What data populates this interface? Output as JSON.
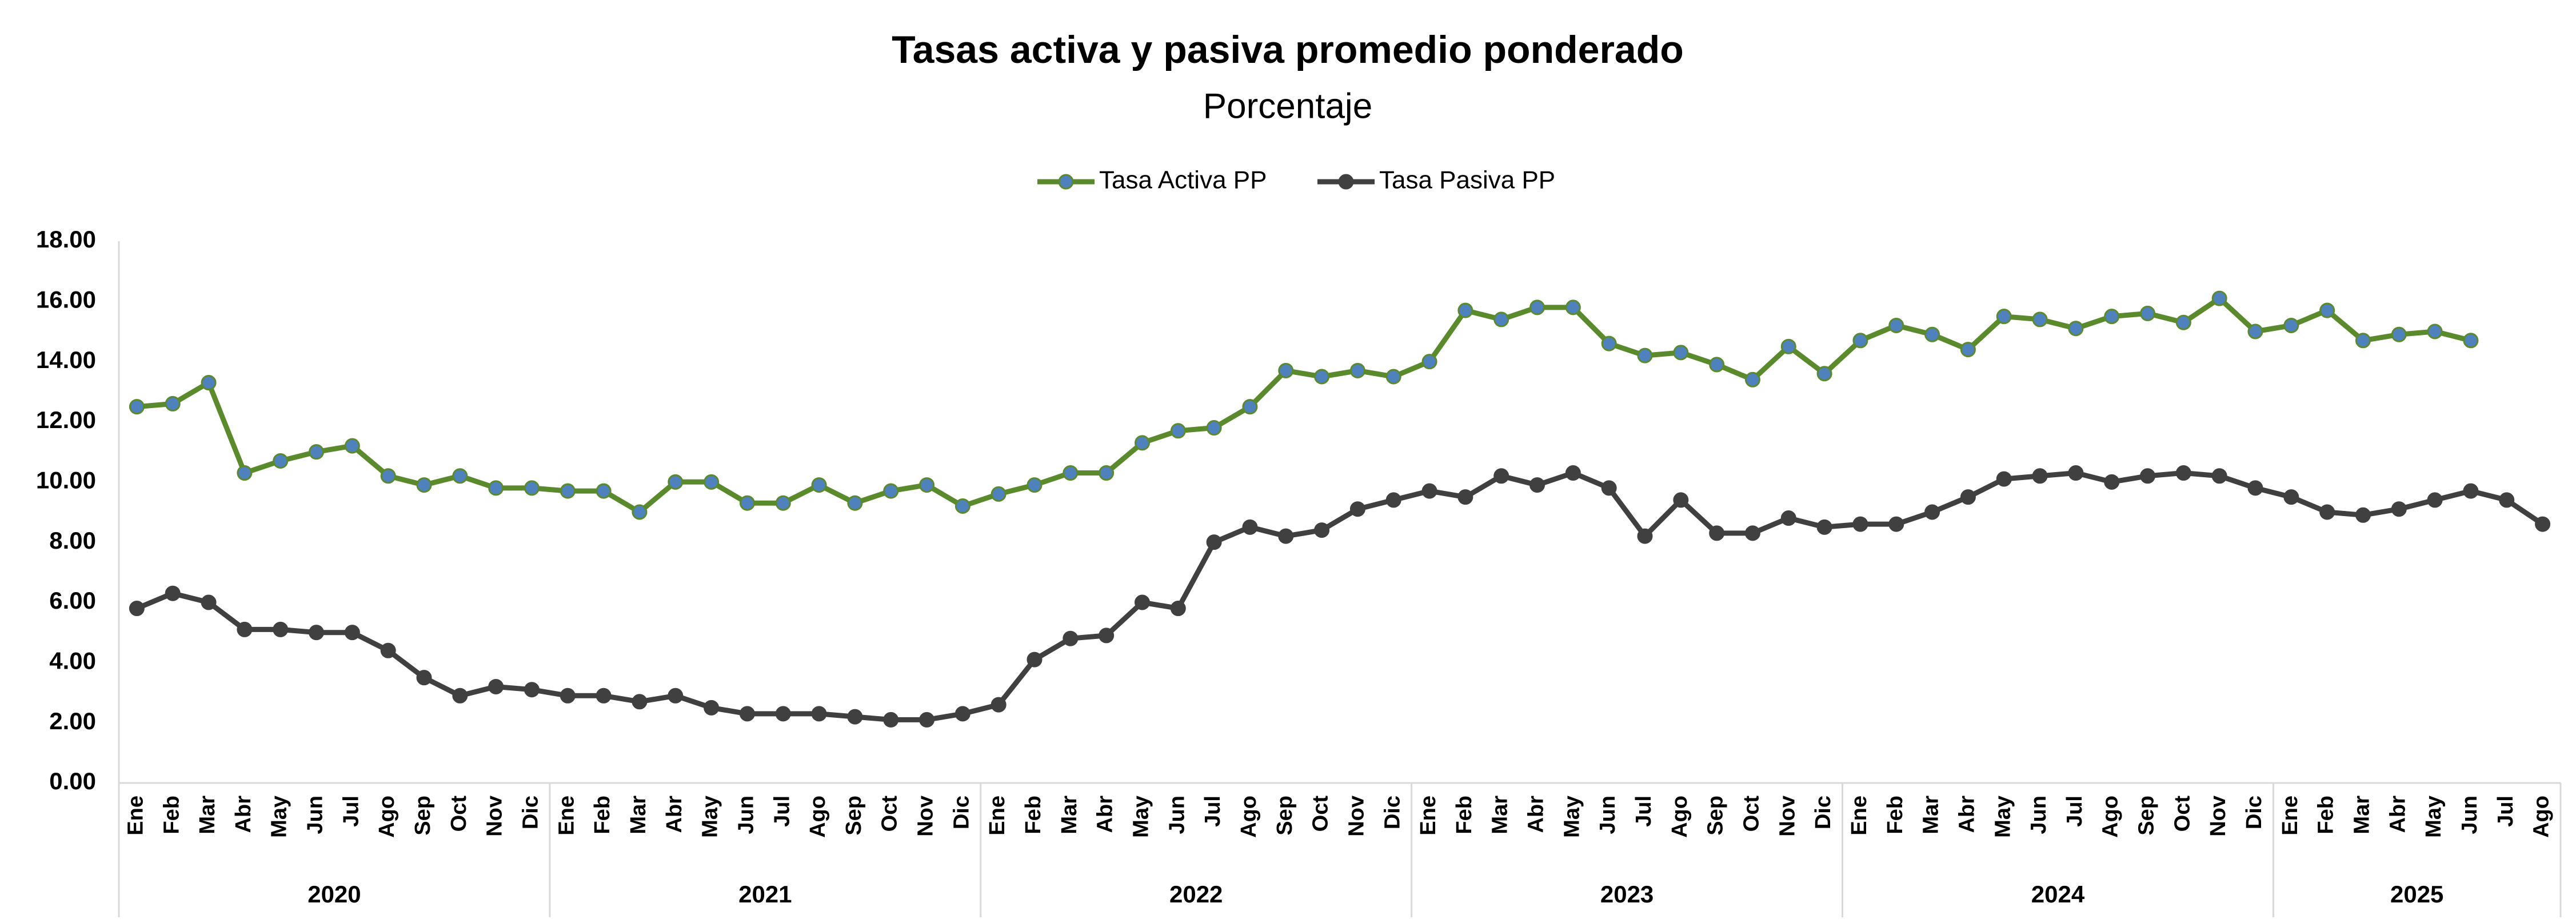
{
  "chart_data": {
    "type": "line",
    "title": "Tasas activa y pasiva promedio ponderado",
    "subtitle": "Porcentaje",
    "categories": [
      "Ene",
      "Feb",
      "Mar",
      "Abr",
      "May",
      "Jun",
      "Jul",
      "Ago",
      "Sep",
      "Oct",
      "Nov",
      "Dic",
      "Ene",
      "Feb",
      "Mar",
      "Abr",
      "May",
      "Jun",
      "Jul",
      "Ago",
      "Sep",
      "Oct",
      "Nov",
      "Dic",
      "Ene",
      "Feb",
      "Mar",
      "Abr",
      "May",
      "Jun",
      "Jul",
      "Ago",
      "Sep",
      "Oct",
      "Nov",
      "Dic",
      "Ene",
      "Feb",
      "Mar",
      "Abr",
      "May",
      "Jun",
      "Jul",
      "Ago",
      "Sep",
      "Oct",
      "Nov",
      "Dic",
      "Ene",
      "Feb",
      "Mar",
      "Abr",
      "May",
      "Jun",
      "Jul",
      "Ago",
      "Sep",
      "Oct",
      "Nov",
      "Dic",
      "Ene",
      "Feb",
      "Mar",
      "Abr",
      "May",
      "Jun",
      "Jul",
      "Ago"
    ],
    "year_groups": [
      "2020",
      "2021",
      "2022",
      "2023",
      "2024",
      "2025"
    ],
    "series": [
      {
        "name": "Tasa Activa PP",
        "color": "#5b8a2d",
        "marker_color": "#4f81bd",
        "values": [
          12.5,
          12.6,
          13.3,
          10.3,
          10.7,
          11.0,
          11.2,
          10.2,
          9.9,
          10.2,
          9.8,
          9.8,
          9.7,
          9.7,
          9.0,
          10.0,
          10.0,
          9.3,
          9.3,
          9.9,
          9.3,
          9.7,
          9.9,
          9.2,
          9.6,
          9.9,
          10.3,
          10.3,
          11.3,
          11.7,
          11.8,
          12.5,
          13.7,
          13.5,
          13.7,
          13.5,
          14.0,
          15.7,
          15.4,
          15.8,
          15.8,
          14.6,
          14.2,
          14.3,
          13.9,
          13.4,
          14.5,
          13.6,
          14.7,
          15.2,
          14.9,
          14.4,
          15.5,
          15.4,
          15.1,
          15.5,
          15.6,
          15.3,
          16.1,
          15.0,
          15.2,
          15.7,
          14.7,
          14.9,
          15.0,
          14.7,
          null,
          null
        ]
      },
      {
        "name": "Tasa Pasiva PP",
        "color": "#404040",
        "marker_color": "#404040",
        "values": [
          5.8,
          6.3,
          6.0,
          5.1,
          5.1,
          5.0,
          5.0,
          4.4,
          3.5,
          2.9,
          3.2,
          3.1,
          2.9,
          2.9,
          2.7,
          2.9,
          2.5,
          2.3,
          2.3,
          2.3,
          2.2,
          2.1,
          2.1,
          2.3,
          2.6,
          4.1,
          4.8,
          4.9,
          6.0,
          5.8,
          8.0,
          8.5,
          8.2,
          8.4,
          9.1,
          9.4,
          9.7,
          9.5,
          10.2,
          9.9,
          10.3,
          9.8,
          8.2,
          9.4,
          8.3,
          8.3,
          8.8,
          8.5,
          8.6,
          8.6,
          9.0,
          9.5,
          10.1,
          10.2,
          10.3,
          10.0,
          10.2,
          10.3,
          10.2,
          9.8,
          9.5,
          9.0,
          8.9,
          9.1,
          9.4,
          9.7,
          9.4,
          8.6
        ]
      }
    ],
    "ylim": [
      0,
      18
    ],
    "yticks": [
      {
        "value": 0,
        "label": "0.00"
      },
      {
        "value": 2,
        "label": "2.00"
      },
      {
        "value": 4,
        "label": "4.00"
      },
      {
        "value": 6,
        "label": "6.00"
      },
      {
        "value": 8,
        "label": "8.00"
      },
      {
        "value": 10,
        "label": "10.00"
      },
      {
        "value": 12,
        "label": "12.00"
      },
      {
        "value": 14,
        "label": "14.00"
      },
      {
        "value": 16,
        "label": "16.00"
      },
      {
        "value": 18,
        "label": "18.00"
      }
    ],
    "grid": false,
    "legend": "top"
  }
}
